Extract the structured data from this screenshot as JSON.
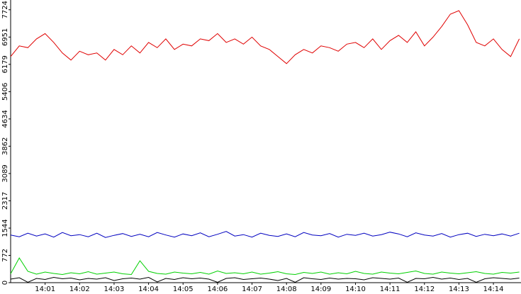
{
  "chart_data": {
    "type": "line",
    "x": [
      0,
      0.25,
      0.5,
      0.75,
      1,
      1.25,
      1.5,
      1.75,
      2,
      2.25,
      2.5,
      2.75,
      3,
      3.25,
      3.5,
      3.75,
      4,
      4.25,
      4.5,
      4.75,
      5,
      5.25,
      5.5,
      5.75,
      6,
      6.25,
      6.5,
      6.75,
      7,
      7.25,
      7.5,
      7.75,
      8,
      8.25,
      8.5,
      8.75,
      9,
      9.25,
      9.5,
      9.75,
      10,
      10.25,
      10.5,
      10.75,
      11,
      11.25,
      11.5,
      11.75,
      12,
      12.25,
      12.5,
      12.75,
      13,
      13.25,
      13.5,
      13.75,
      14,
      14.25,
      14.5,
      14.75
    ],
    "series": [
      {
        "color": "#e00000",
        "values": [
          6400,
          6700,
          6650,
          6900,
          7050,
          6800,
          6500,
          6300,
          6550,
          6450,
          6500,
          6300,
          6600,
          6450,
          6700,
          6500,
          6800,
          6650,
          6900,
          6600,
          6750,
          6700,
          6900,
          6850,
          7050,
          6800,
          6900,
          6750,
          6950,
          6700,
          6600,
          6400,
          6200,
          6450,
          6600,
          6500,
          6700,
          6650,
          6550,
          6750,
          6800,
          6650,
          6900,
          6600,
          6850,
          7000,
          6800,
          7100,
          6700,
          6950,
          7250,
          7600,
          7700,
          7300,
          6800,
          6700,
          6900,
          6600,
          6400,
          6900
        ]
      },
      {
        "color": "#0000c0",
        "values": [
          1350,
          1300,
          1400,
          1320,
          1380,
          1290,
          1420,
          1330,
          1360,
          1300,
          1400,
          1280,
          1340,
          1390,
          1310,
          1370,
          1300,
          1420,
          1350,
          1290,
          1380,
          1330,
          1410,
          1300,
          1370,
          1450,
          1320,
          1360,
          1290,
          1400,
          1340,
          1310,
          1380,
          1300,
          1420,
          1350,
          1330,
          1390,
          1290,
          1370,
          1340,
          1400,
          1320,
          1360,
          1430,
          1380,
          1300,
          1410,
          1350,
          1320,
          1390,
          1290,
          1360,
          1400,
          1310,
          1370,
          1330,
          1380,
          1320,
          1400
        ]
      },
      {
        "color": "#00d000",
        "values": [
          250,
          700,
          320,
          240,
          300,
          260,
          230,
          280,
          250,
          310,
          240,
          270,
          300,
          250,
          230,
          620,
          320,
          260,
          240,
          300,
          270,
          250,
          290,
          240,
          330,
          260,
          280,
          250,
          300,
          240,
          270,
          310,
          250,
          230,
          290,
          260,
          300,
          240,
          280,
          250,
          320,
          260,
          240,
          300,
          270,
          250,
          290,
          330,
          260,
          240,
          300,
          270,
          250,
          280,
          310,
          260,
          240,
          290,
          270,
          300
        ]
      },
      {
        "color": "#000000",
        "values": [
          100,
          140,
          10,
          120,
          90,
          150,
          110,
          130,
          80,
          120,
          100,
          140,
          60,
          110,
          130,
          100,
          150,
          20,
          120,
          90,
          140,
          110,
          130,
          100,
          10,
          120,
          140,
          90,
          110,
          130,
          100,
          60,
          120,
          10,
          140,
          110,
          90,
          130,
          100,
          120,
          110,
          80,
          140,
          120,
          100,
          130,
          10,
          120,
          110,
          150,
          100,
          130,
          90,
          120,
          10,
          110,
          140,
          120,
          100,
          130
        ]
      }
    ],
    "xlim": [
      0,
      14.8
    ],
    "ylim": [
      0,
      8000
    ],
    "xticks": [
      {
        "value": 1,
        "label": "14:01"
      },
      {
        "value": 2,
        "label": "14:02"
      },
      {
        "value": 3,
        "label": "14:03"
      },
      {
        "value": 4,
        "label": "14:04"
      },
      {
        "value": 5,
        "label": "14:05"
      },
      {
        "value": 6,
        "label": "14:06"
      },
      {
        "value": 7,
        "label": "14:07"
      },
      {
        "value": 8,
        "label": "14:08"
      },
      {
        "value": 9,
        "label": "14:09"
      },
      {
        "value": 10,
        "label": "14:10"
      },
      {
        "value": 11,
        "label": "14:11"
      },
      {
        "value": 12,
        "label": "14:12"
      },
      {
        "value": 13,
        "label": "14:13"
      },
      {
        "value": 14,
        "label": "14:14"
      }
    ],
    "yticks": [
      0,
      772,
      1544,
      2317,
      3089,
      3862,
      4634,
      5406,
      6179,
      6951,
      7724
    ]
  }
}
